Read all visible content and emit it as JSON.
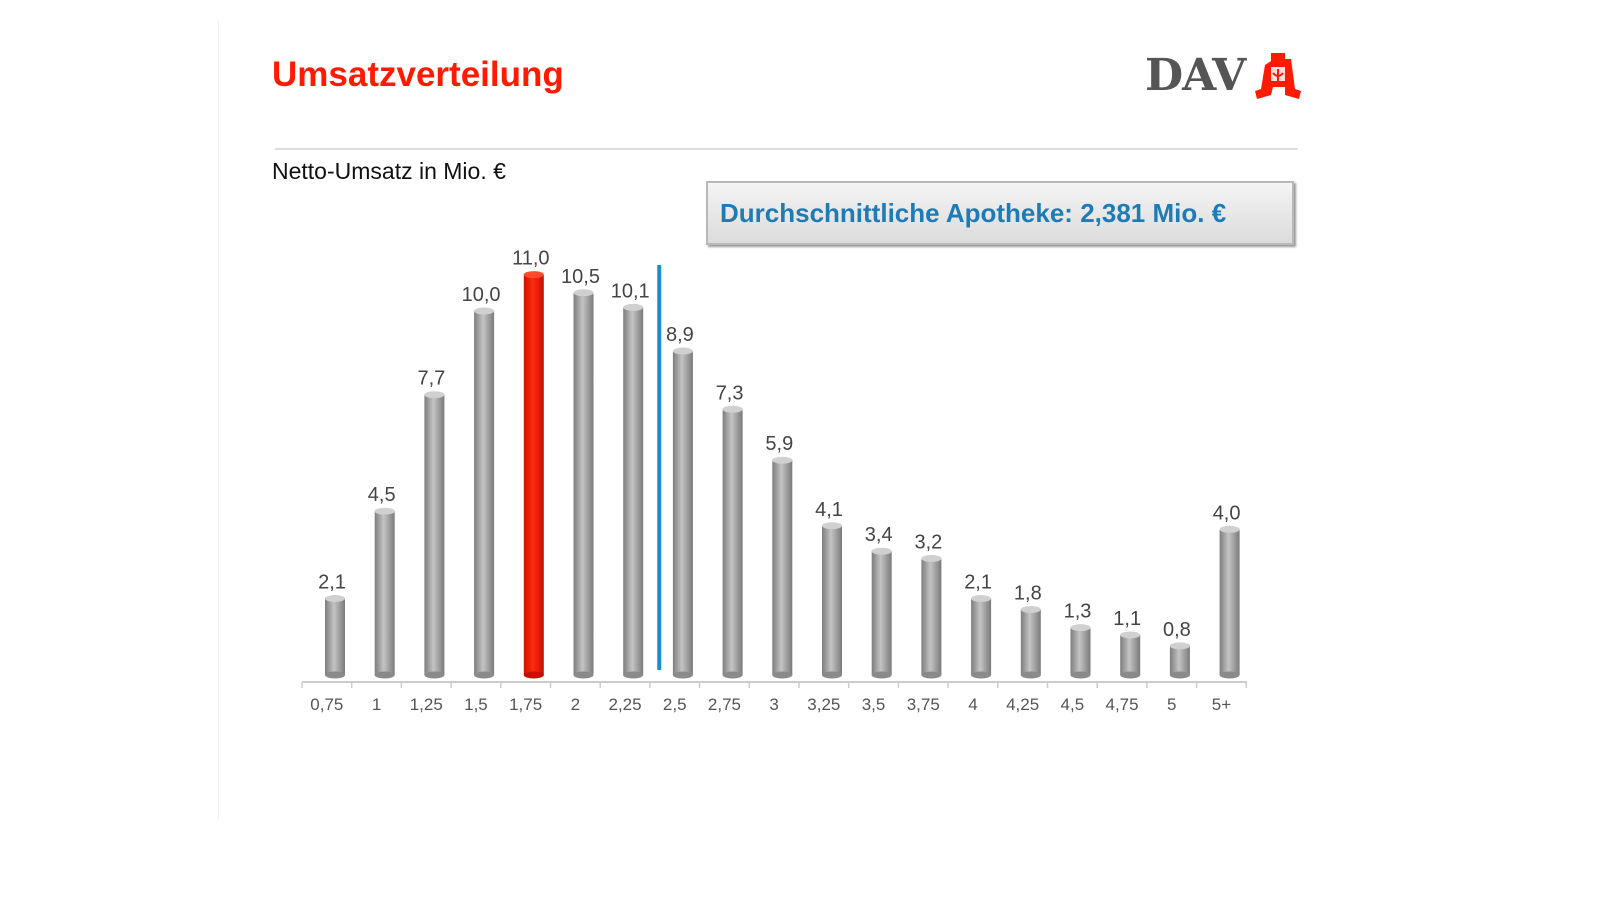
{
  "header": {
    "title": "Umsatzverteilung",
    "logo_text": "DAV"
  },
  "chart_data": {
    "type": "bar",
    "title": "Umsatzverteilung",
    "ylabel": "Netto-Umsatz in Mio. €",
    "xlabel": "",
    "categories": [
      "0,75",
      "1",
      "1,25",
      "1,5",
      "1,75",
      "2",
      "2,25",
      "2,5",
      "2,75",
      "3",
      "3,25",
      "3,5",
      "3,75",
      "4",
      "4,25",
      "4,5",
      "4,75",
      "5",
      "5+"
    ],
    "values": [
      2.1,
      4.5,
      7.7,
      10.0,
      11.0,
      10.5,
      10.1,
      8.9,
      7.3,
      5.9,
      4.1,
      3.4,
      3.2,
      2.1,
      1.8,
      1.3,
      1.1,
      0.8,
      4.0
    ],
    "value_labels": [
      "2,1",
      "4,5",
      "7,7",
      "10,0",
      "11,0",
      "10,5",
      "10,1",
      "8,9",
      "7,3",
      "5,9",
      "4,1",
      "3,4",
      "3,2",
      "2,1",
      "1,8",
      "1,3",
      "1,1",
      "0,8",
      "4,0"
    ],
    "highlight_index": 4,
    "ylim": [
      0,
      11
    ],
    "grid": false,
    "average_marker": {
      "label": "Durchschnittliche Apotheke: 2,381 Mio. €",
      "value": 2.381
    },
    "colors": {
      "bar": "#a6a6a6",
      "highlight": "#ff1a00",
      "average": "#1a8fd0",
      "title": "#ff1a00",
      "avg_text": "#1f7bb5"
    }
  }
}
